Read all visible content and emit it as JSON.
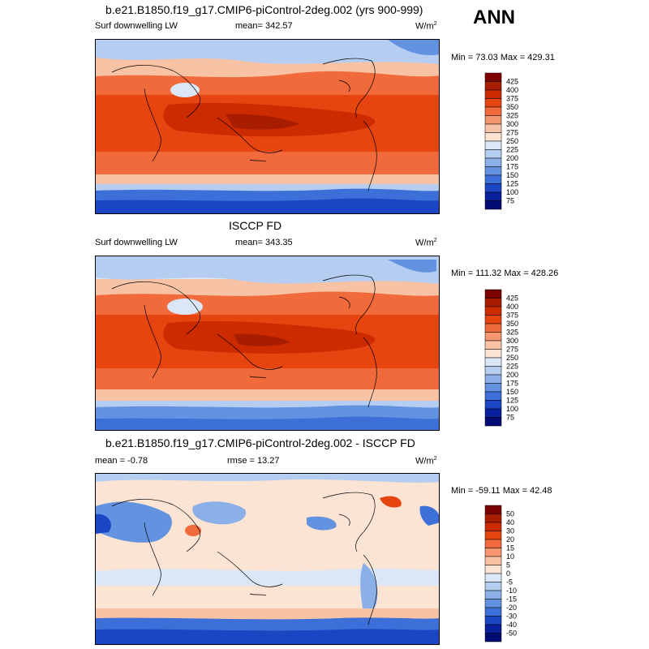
{
  "season": "ANN",
  "panels": [
    {
      "title": "b.e21.B1850.f19_g17.CMIP6-piControl-2deg.002 (yrs 900-999)",
      "left_label": "Surf downwelling LW",
      "center_label": "mean= 342.57",
      "units": "W/m",
      "units_exp": "2",
      "minmax": "Min =  73.03 Max = 429.31",
      "colorbar": {
        "labels": [
          "425",
          "400",
          "375",
          "350",
          "325",
          "300",
          "275",
          "250",
          "225",
          "200",
          "175",
          "150",
          "125",
          "100",
          "75"
        ],
        "colors": [
          "#7b0000",
          "#a81c00",
          "#cc2b00",
          "#e64510",
          "#f06a3c",
          "#f4966f",
          "#f8c2a4",
          "#fbe4d4",
          "#dbe7f7",
          "#b4cdf0",
          "#8bb0e8",
          "#6393e0",
          "#3d6fd8",
          "#1a46c4",
          "#08209b",
          "#000b74"
        ]
      }
    },
    {
      "title": "ISCCP FD",
      "left_label": "Surf downwelling LW",
      "center_label": "mean= 343.35",
      "units": "W/m",
      "units_exp": "2",
      "minmax": "Min = 111.32 Max = 428.26",
      "colorbar": {
        "labels": [
          "425",
          "400",
          "375",
          "350",
          "325",
          "300",
          "275",
          "250",
          "225",
          "200",
          "175",
          "150",
          "125",
          "100",
          "75"
        ],
        "colors": [
          "#7b0000",
          "#a81c00",
          "#cc2b00",
          "#e64510",
          "#f06a3c",
          "#f4966f",
          "#f8c2a4",
          "#fbe4d4",
          "#dbe7f7",
          "#b4cdf0",
          "#8bb0e8",
          "#6393e0",
          "#3d6fd8",
          "#1a46c4",
          "#08209b",
          "#000b74"
        ]
      }
    },
    {
      "title": "b.e21.B1850.f19_g17.CMIP6-piControl-2deg.002 - ISCCP FD",
      "left_label": "mean =  -0.78",
      "center_label": "rmse =  13.27",
      "units": "W/m",
      "units_exp": "2",
      "minmax": "Min = -59.11 Max =  42.48",
      "colorbar": {
        "labels": [
          "50",
          "40",
          "30",
          "20",
          "15",
          "10",
          "5",
          "0",
          "-5",
          "-10",
          "-15",
          "-20",
          "-30",
          "-40",
          "-50"
        ],
        "colors": [
          "#7b0000",
          "#a81c00",
          "#cc2b00",
          "#e64510",
          "#f06a3c",
          "#f4966f",
          "#f8c2a4",
          "#fbe4d4",
          "#dbe7f7",
          "#b4cdf0",
          "#8bb0e8",
          "#6393e0",
          "#3d6fd8",
          "#1a46c4",
          "#08209b",
          "#000b74"
        ]
      }
    }
  ]
}
